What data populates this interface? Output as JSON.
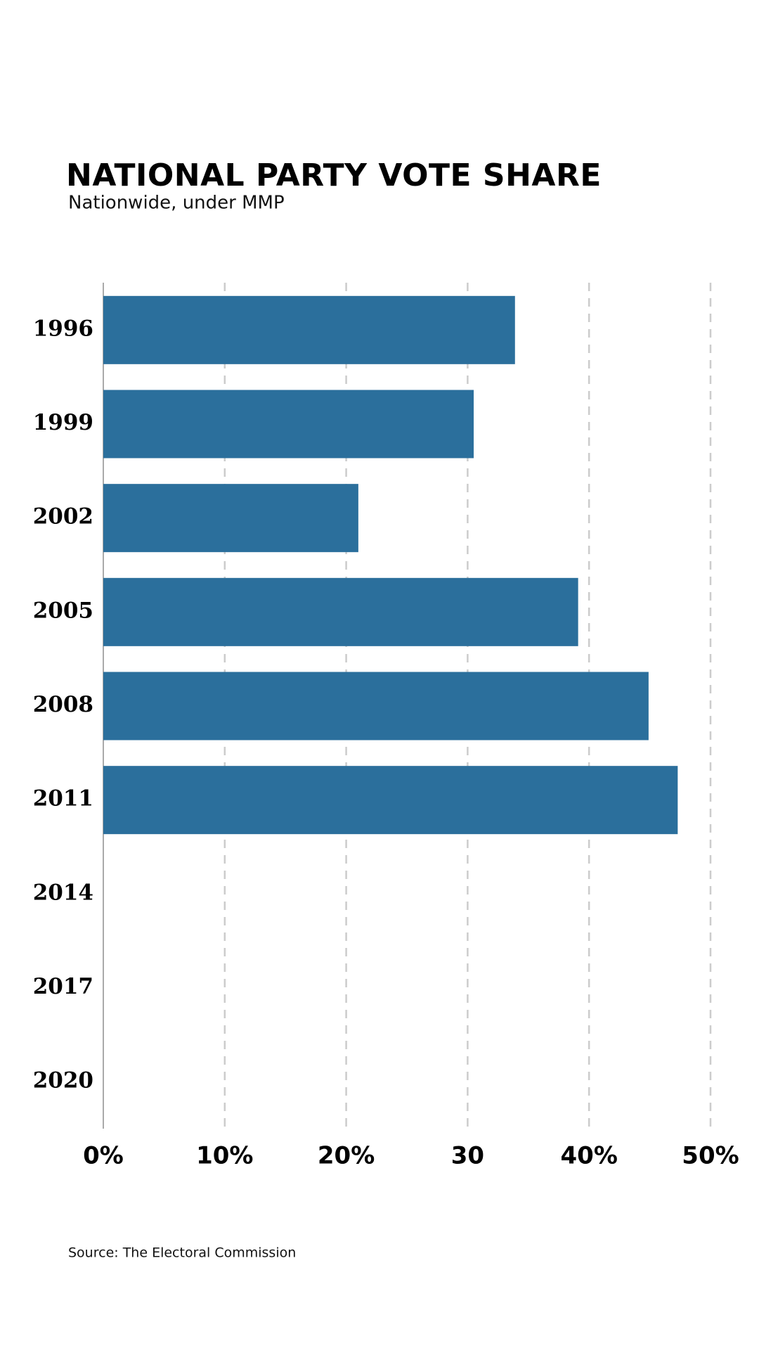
{
  "chart_data": {
    "type": "bar",
    "orientation": "horizontal",
    "title": "NATIONAL PARTY VOTE SHARE",
    "subtitle": "Nationwide, under MMP",
    "source": "Source: The Electoral Commission",
    "categories": [
      "1996",
      "1999",
      "2002",
      "2005",
      "2008",
      "2011",
      "2014",
      "2017",
      "2020"
    ],
    "values": [
      33.9,
      30.5,
      21.0,
      39.1,
      44.9,
      47.3,
      null,
      null,
      null
    ],
    "color": "#2b6f9c",
    "xlim": [
      0,
      50
    ],
    "xticks": [
      {
        "value": 0,
        "label": "0%"
      },
      {
        "value": 10,
        "label": "10%"
      },
      {
        "value": 20,
        "label": "20%"
      },
      30,
      {
        "value": 40,
        "label": "40%"
      },
      {
        "value": 50,
        "label": "50%"
      }
    ],
    "grid": true
  }
}
